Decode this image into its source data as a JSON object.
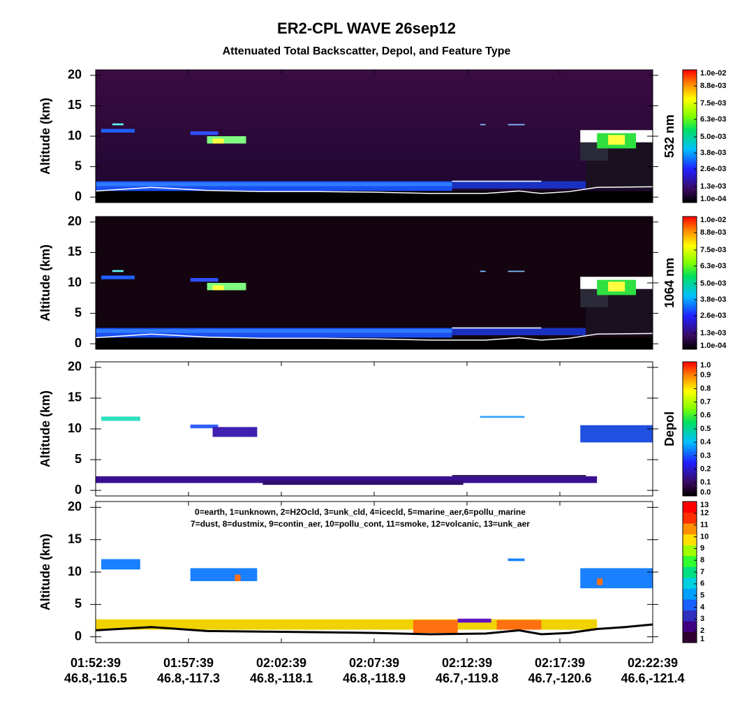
{
  "title": "ER2-CPL WAVE 26sep12",
  "subtitle": "Attenuated Total Backscatter, Depol, and Feature Type",
  "x_axis": {
    "times": [
      "01:52:39",
      "01:57:39",
      "02:02:39",
      "02:07:39",
      "02:12:39",
      "02:17:39",
      "02:22:39"
    ],
    "coords": [
      "46.8,-116.5",
      "46.8,-117.3",
      "46.8,-118.1",
      "46.8,-118.9",
      "46.7,-119.8",
      "46.7,-120.6",
      "46.6,-121.4"
    ]
  },
  "chart_data": [
    {
      "type": "heatmap",
      "ylabel": "Altitude (km)",
      "ylim": [
        -0.9,
        20.9
      ],
      "yticks": [
        0,
        5,
        10,
        15,
        20
      ],
      "colorbar": {
        "label": "532 nm",
        "clim": [
          0.0001,
          0.01
        ],
        "ticks": [
          {
            "value": 0.0001,
            "label": "1.0e-04"
          },
          {
            "value": 0.0013,
            "label": "1.3e-03"
          },
          {
            "value": 0.0026,
            "label": "2.6e-03"
          },
          {
            "value": 0.0038,
            "label": "3.8e-03"
          },
          {
            "value": 0.005,
            "label": "5.0e-03"
          },
          {
            "value": 0.0063,
            "label": "6.3e-03"
          },
          {
            "value": 0.0075,
            "label": "7.5e-03"
          },
          {
            "value": 0.0088,
            "label": "8.8e-03"
          },
          {
            "value": 0.01,
            "label": "1.0e-02"
          }
        ]
      }
    },
    {
      "type": "heatmap",
      "ylabel": "Altitude (km)",
      "ylim": [
        -0.9,
        20.9
      ],
      "yticks": [
        0,
        5,
        10,
        15,
        20
      ],
      "colorbar": {
        "label": "1064 nm",
        "clim": [
          0.0001,
          0.01
        ],
        "ticks": [
          {
            "value": 0.0001,
            "label": "1.0e-04"
          },
          {
            "value": 0.0013,
            "label": "1.3e-03"
          },
          {
            "value": 0.0026,
            "label": "2.6e-03"
          },
          {
            "value": 0.0038,
            "label": "3.8e-03"
          },
          {
            "value": 0.005,
            "label": "5.0e-03"
          },
          {
            "value": 0.0063,
            "label": "6.3e-03"
          },
          {
            "value": 0.0075,
            "label": "7.5e-03"
          },
          {
            "value": 0.0088,
            "label": "8.8e-03"
          },
          {
            "value": 0.01,
            "label": "1.0e-02"
          }
        ]
      }
    },
    {
      "type": "depol",
      "ylabel": "Altitude (km)",
      "ylim": [
        -0.9,
        20.9
      ],
      "yticks": [
        0,
        5,
        10,
        15,
        20
      ],
      "colorbar": {
        "label": "Depol",
        "clim": [
          0,
          1
        ],
        "ticks": [
          {
            "value": 0,
            "label": "0.0"
          },
          0.1,
          0.2,
          0.3,
          0.4,
          0.5,
          0.6,
          0.7,
          0.8,
          0.9,
          {
            "value": 1,
            "label": "1.0"
          }
        ]
      }
    },
    {
      "type": "feature",
      "ylabel": "Altitude (km)",
      "ylim": [
        -0.9,
        20.9
      ],
      "yticks": [
        0,
        5,
        10,
        15,
        20
      ],
      "legend": [
        "0=earth, 1=unknown, 2=H2Ocld, 3=unk_cld, 4=icecld, 5=marine_aer,6=pollu_marine",
        "7=dust, 8=dustmix, 9=contin_aer, 10=pollu_cont, 11=smoke, 12=volcanic, 13=unk_aer"
      ],
      "colorbar": {
        "clim": [
          1,
          13
        ],
        "ticks": [
          1,
          2,
          3,
          4,
          5,
          6,
          7,
          8,
          9,
          10,
          11,
          12,
          13
        ]
      }
    }
  ]
}
